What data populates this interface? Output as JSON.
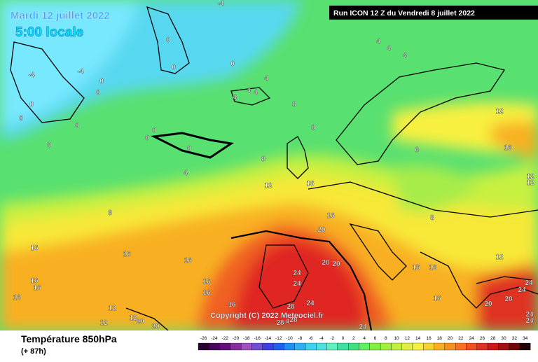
{
  "header": {
    "date": "Mardi 12 juillet 2022",
    "time": "5:00 locale",
    "run": "Run ICON 12 Z du Vendredi 8 juillet 2022"
  },
  "footer": {
    "title": "Température 850hPa",
    "subtitle": "(+ 87h)"
  },
  "copyright": "Copyright (C) 2022 Meteociel.fr",
  "scale": {
    "labels": [
      "-26",
      "-24",
      "-22",
      "-20",
      "-18",
      "-16",
      "-14",
      "-12",
      "-10",
      "-8",
      "-6",
      "-4",
      "-2",
      "0",
      "2",
      "4",
      "6",
      "8",
      "10",
      "12",
      "14",
      "16",
      "18",
      "20",
      "22",
      "24",
      "26",
      "28",
      "30",
      "32",
      "34"
    ],
    "colors": [
      "#2a0030",
      "#4b0060",
      "#6a0a80",
      "#8a2aa0",
      "#a050c0",
      "#7050d0",
      "#4040e0",
      "#2060f0",
      "#2090f0",
      "#30b0f0",
      "#40d0f0",
      "#50e0e0",
      "#60f0c0",
      "#40e0a0",
      "#40e080",
      "#60f060",
      "#80f040",
      "#a0f040",
      "#c0f040",
      "#e0f040",
      "#f8f040",
      "#f8d030",
      "#f8b020",
      "#f89020",
      "#f87020",
      "#f05020",
      "#e03020",
      "#c81818",
      "#a01010",
      "#700808",
      "#200000"
    ]
  },
  "contour_labels": [
    "-4",
    "0",
    "0",
    "0",
    "-4",
    "-4",
    "0",
    "0",
    "0",
    "0",
    "0",
    "0",
    "0",
    "0",
    "0",
    "4",
    "4",
    "4",
    "4",
    "4",
    "4",
    "4",
    "8",
    "8",
    "8",
    "8",
    "4",
    "12",
    "12",
    "16",
    "16",
    "12",
    "12",
    "8",
    "16",
    "20",
    "8",
    "16",
    "16",
    "16",
    "16",
    "16",
    "16",
    "16",
    "16",
    "16",
    "20",
    "20",
    "24",
    "24",
    "16",
    "16",
    "12",
    "16",
    "20",
    "20",
    "24",
    "24",
    "24",
    "24",
    "28",
    "24",
    "28",
    "4",
    "28",
    "24",
    "12",
    "12",
    "12",
    "20",
    "20"
  ]
}
